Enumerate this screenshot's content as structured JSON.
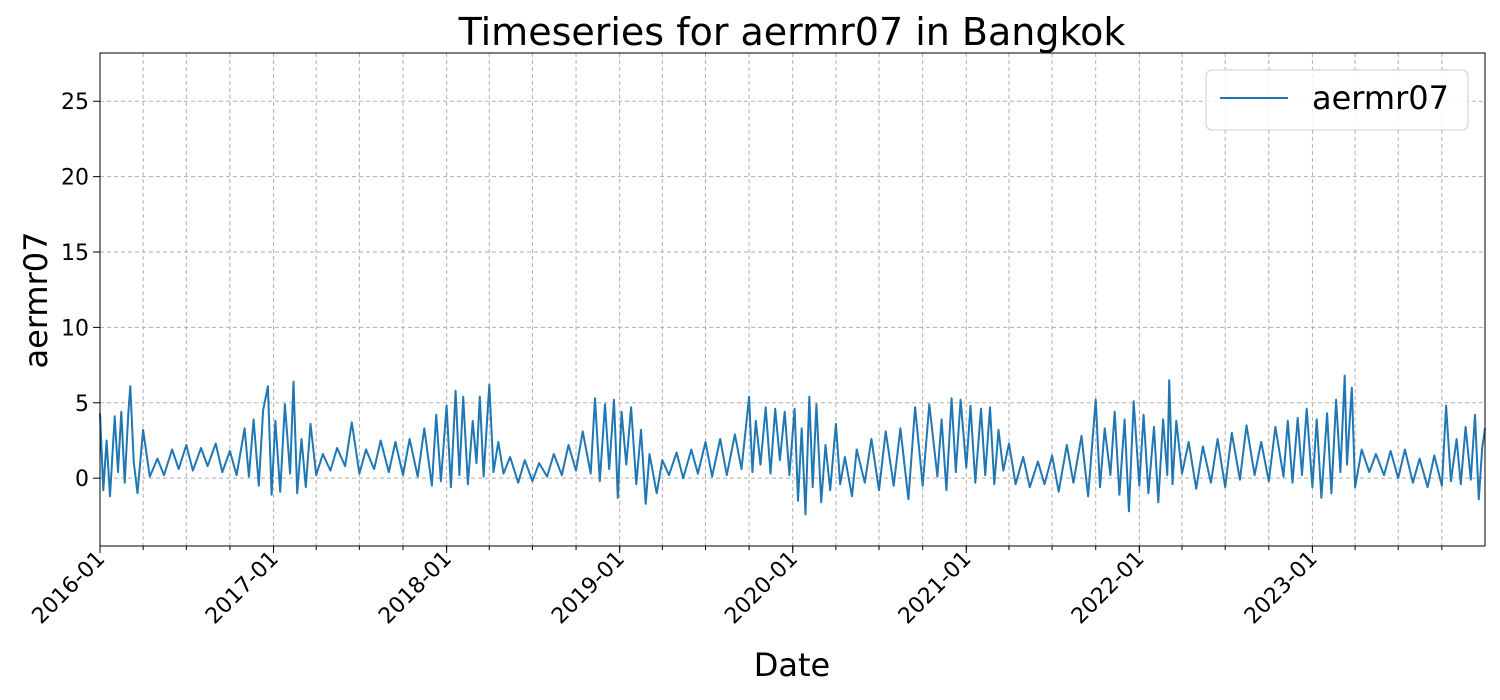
{
  "chart_data": {
    "type": "line",
    "title": "Timeseries for aermr07 in Bangkok",
    "xlabel": "Date",
    "ylabel": "aermr07",
    "x_range": [
      "2016-01-01",
      "2023-12-31"
    ],
    "ylim": [
      -4.5,
      28.2
    ],
    "y_ticks": [
      0,
      5,
      10,
      15,
      20,
      25
    ],
    "x_ticks": [
      "2016-01",
      "2017-01",
      "2018-01",
      "2019-01",
      "2020-01",
      "2021-01",
      "2022-01",
      "2023-01"
    ],
    "grid": true,
    "legend_position": "top-right",
    "series": [
      {
        "name": "aermr07",
        "color": "#1f77b4",
        "points": [
          [
            "2016-01-01",
            4.3
          ],
          [
            "2016-01-08",
            -0.8
          ],
          [
            "2016-01-15",
            2.5
          ],
          [
            "2016-01-22",
            -1.2
          ],
          [
            "2016-02-01",
            4.1
          ],
          [
            "2016-02-08",
            0.4
          ],
          [
            "2016-02-15",
            4.4
          ],
          [
            "2016-02-22",
            -0.3
          ],
          [
            "2016-03-01",
            4.4
          ],
          [
            "2016-03-05",
            6.1
          ],
          [
            "2016-03-12",
            1.1
          ],
          [
            "2016-03-20",
            -1.0
          ],
          [
            "2016-04-01",
            3.2
          ],
          [
            "2016-04-15",
            0.1
          ],
          [
            "2016-05-01",
            1.3
          ],
          [
            "2016-05-15",
            0.2
          ],
          [
            "2016-06-01",
            1.9
          ],
          [
            "2016-06-15",
            0.6
          ],
          [
            "2016-07-01",
            2.2
          ],
          [
            "2016-07-15",
            0.5
          ],
          [
            "2016-08-01",
            2.0
          ],
          [
            "2016-08-15",
            0.8
          ],
          [
            "2016-09-01",
            2.3
          ],
          [
            "2016-09-15",
            0.4
          ],
          [
            "2016-10-01",
            1.8
          ],
          [
            "2016-10-15",
            0.2
          ],
          [
            "2016-11-01",
            3.3
          ],
          [
            "2016-11-10",
            0.1
          ],
          [
            "2016-11-20",
            3.9
          ],
          [
            "2016-12-01",
            -0.5
          ],
          [
            "2016-12-10",
            4.5
          ],
          [
            "2016-12-20",
            6.1
          ],
          [
            "2016-12-28",
            -1.1
          ],
          [
            "2017-01-05",
            3.8
          ],
          [
            "2017-01-15",
            -0.9
          ],
          [
            "2017-01-25",
            4.9
          ],
          [
            "2017-02-05",
            0.3
          ],
          [
            "2017-02-12",
            6.4
          ],
          [
            "2017-02-20",
            -1.0
          ],
          [
            "2017-03-01",
            2.6
          ],
          [
            "2017-03-10",
            -0.6
          ],
          [
            "2017-03-20",
            3.6
          ],
          [
            "2017-04-01",
            0.2
          ],
          [
            "2017-04-15",
            1.6
          ],
          [
            "2017-05-01",
            0.5
          ],
          [
            "2017-05-15",
            2.0
          ],
          [
            "2017-06-01",
            0.8
          ],
          [
            "2017-06-15",
            3.7
          ],
          [
            "2017-07-01",
            0.3
          ],
          [
            "2017-07-15",
            1.9
          ],
          [
            "2017-08-01",
            0.6
          ],
          [
            "2017-08-15",
            2.5
          ],
          [
            "2017-09-01",
            0.4
          ],
          [
            "2017-09-15",
            2.4
          ],
          [
            "2017-10-01",
            0.2
          ],
          [
            "2017-10-15",
            2.6
          ],
          [
            "2017-11-01",
            0.1
          ],
          [
            "2017-11-15",
            3.3
          ],
          [
            "2017-12-01",
            -0.5
          ],
          [
            "2017-12-10",
            4.2
          ],
          [
            "2017-12-20",
            -0.2
          ],
          [
            "2018-01-01",
            4.8
          ],
          [
            "2018-01-10",
            -0.6
          ],
          [
            "2018-01-20",
            5.8
          ],
          [
            "2018-01-28",
            0.2
          ],
          [
            "2018-02-05",
            5.4
          ],
          [
            "2018-02-15",
            -0.4
          ],
          [
            "2018-02-25",
            3.8
          ],
          [
            "2018-03-05",
            1.0
          ],
          [
            "2018-03-12",
            5.4
          ],
          [
            "2018-03-20",
            0.1
          ],
          [
            "2018-04-01",
            6.2
          ],
          [
            "2018-04-10",
            0.4
          ],
          [
            "2018-04-20",
            2.4
          ],
          [
            "2018-05-01",
            0.3
          ],
          [
            "2018-05-15",
            1.4
          ],
          [
            "2018-06-01",
            -0.3
          ],
          [
            "2018-06-15",
            1.2
          ],
          [
            "2018-07-01",
            -0.2
          ],
          [
            "2018-07-15",
            1.0
          ],
          [
            "2018-08-01",
            0.1
          ],
          [
            "2018-08-15",
            1.6
          ],
          [
            "2018-09-01",
            0.2
          ],
          [
            "2018-09-15",
            2.2
          ],
          [
            "2018-10-01",
            0.5
          ],
          [
            "2018-10-15",
            3.1
          ],
          [
            "2018-11-01",
            0.3
          ],
          [
            "2018-11-10",
            5.3
          ],
          [
            "2018-11-20",
            -0.2
          ],
          [
            "2018-12-01",
            4.9
          ],
          [
            "2018-12-10",
            0.6
          ],
          [
            "2018-12-20",
            5.2
          ],
          [
            "2018-12-28",
            -1.3
          ],
          [
            "2019-01-05",
            4.4
          ],
          [
            "2019-01-15",
            0.9
          ],
          [
            "2019-01-25",
            4.7
          ],
          [
            "2019-02-05",
            -0.4
          ],
          [
            "2019-02-15",
            3.2
          ],
          [
            "2019-02-25",
            -1.7
          ],
          [
            "2019-03-05",
            1.6
          ],
          [
            "2019-03-20",
            -1.0
          ],
          [
            "2019-04-01",
            1.2
          ],
          [
            "2019-04-15",
            0.2
          ],
          [
            "2019-05-01",
            1.7
          ],
          [
            "2019-05-15",
            0.0
          ],
          [
            "2019-06-01",
            1.9
          ],
          [
            "2019-06-15",
            0.3
          ],
          [
            "2019-07-01",
            2.4
          ],
          [
            "2019-07-15",
            0.1
          ],
          [
            "2019-08-01",
            2.6
          ],
          [
            "2019-08-15",
            0.2
          ],
          [
            "2019-09-01",
            2.9
          ],
          [
            "2019-09-15",
            0.6
          ],
          [
            "2019-10-01",
            5.4
          ],
          [
            "2019-10-08",
            0.4
          ],
          [
            "2019-10-15",
            3.8
          ],
          [
            "2019-10-25",
            0.9
          ],
          [
            "2019-11-05",
            4.7
          ],
          [
            "2019-11-15",
            0.3
          ],
          [
            "2019-11-25",
            4.6
          ],
          [
            "2019-12-05",
            1.2
          ],
          [
            "2019-12-15",
            4.4
          ],
          [
            "2019-12-25",
            0.2
          ],
          [
            "2020-01-05",
            4.6
          ],
          [
            "2020-01-12",
            -1.5
          ],
          [
            "2020-01-20",
            3.3
          ],
          [
            "2020-01-28",
            -2.4
          ],
          [
            "2020-02-05",
            5.4
          ],
          [
            "2020-02-12",
            -0.6
          ],
          [
            "2020-02-20",
            4.9
          ],
          [
            "2020-03-01",
            -1.6
          ],
          [
            "2020-03-10",
            2.2
          ],
          [
            "2020-03-20",
            -0.8
          ],
          [
            "2020-04-01",
            3.6
          ],
          [
            "2020-04-10",
            -0.4
          ],
          [
            "2020-04-20",
            1.4
          ],
          [
            "2020-05-05",
            -1.2
          ],
          [
            "2020-05-15",
            1.9
          ],
          [
            "2020-06-01",
            -0.3
          ],
          [
            "2020-06-15",
            2.6
          ],
          [
            "2020-07-01",
            -0.8
          ],
          [
            "2020-07-15",
            3.1
          ],
          [
            "2020-08-01",
            -0.5
          ],
          [
            "2020-08-15",
            3.3
          ],
          [
            "2020-09-01",
            -1.4
          ],
          [
            "2020-09-15",
            4.7
          ],
          [
            "2020-10-01",
            -0.5
          ],
          [
            "2020-10-15",
            4.9
          ],
          [
            "2020-11-01",
            0.1
          ],
          [
            "2020-11-10",
            3.9
          ],
          [
            "2020-11-20",
            -0.8
          ],
          [
            "2020-12-01",
            5.3
          ],
          [
            "2020-12-10",
            0.4
          ],
          [
            "2020-12-20",
            5.2
          ],
          [
            "2021-01-01",
            0.7
          ],
          [
            "2021-01-10",
            4.8
          ],
          [
            "2021-01-20",
            -0.3
          ],
          [
            "2021-02-01",
            4.6
          ],
          [
            "2021-02-10",
            0.2
          ],
          [
            "2021-02-20",
            4.7
          ],
          [
            "2021-03-01",
            -0.4
          ],
          [
            "2021-03-10",
            3.2
          ],
          [
            "2021-03-20",
            0.5
          ],
          [
            "2021-04-01",
            2.3
          ],
          [
            "2021-04-15",
            -0.4
          ],
          [
            "2021-05-01",
            1.4
          ],
          [
            "2021-05-15",
            -0.6
          ],
          [
            "2021-06-01",
            1.1
          ],
          [
            "2021-06-15",
            -0.4
          ],
          [
            "2021-07-01",
            1.5
          ],
          [
            "2021-07-15",
            -0.9
          ],
          [
            "2021-08-01",
            2.2
          ],
          [
            "2021-08-15",
            -0.3
          ],
          [
            "2021-09-01",
            2.8
          ],
          [
            "2021-09-15",
            -1.2
          ],
          [
            "2021-10-01",
            5.2
          ],
          [
            "2021-10-10",
            -0.6
          ],
          [
            "2021-10-20",
            3.3
          ],
          [
            "2021-11-01",
            0.2
          ],
          [
            "2021-11-10",
            4.4
          ],
          [
            "2021-11-20",
            -1.1
          ],
          [
            "2021-12-01",
            3.9
          ],
          [
            "2021-12-10",
            -2.2
          ],
          [
            "2021-12-20",
            5.1
          ],
          [
            "2022-01-01",
            -0.5
          ],
          [
            "2022-01-10",
            4.2
          ],
          [
            "2022-01-20",
            -1.0
          ],
          [
            "2022-02-01",
            3.4
          ],
          [
            "2022-02-10",
            -1.6
          ],
          [
            "2022-02-20",
            3.9
          ],
          [
            "2022-03-01",
            0.2
          ],
          [
            "2022-03-05",
            6.5
          ],
          [
            "2022-03-12",
            -0.4
          ],
          [
            "2022-03-20",
            3.8
          ],
          [
            "2022-04-01",
            0.3
          ],
          [
            "2022-04-15",
            2.4
          ],
          [
            "2022-05-01",
            -0.7
          ],
          [
            "2022-05-15",
            2.1
          ],
          [
            "2022-06-01",
            -0.3
          ],
          [
            "2022-06-15",
            2.6
          ],
          [
            "2022-07-01",
            -0.6
          ],
          [
            "2022-07-15",
            3.0
          ],
          [
            "2022-08-01",
            -0.1
          ],
          [
            "2022-08-15",
            3.5
          ],
          [
            "2022-09-01",
            0.2
          ],
          [
            "2022-09-15",
            2.4
          ],
          [
            "2022-10-01",
            -0.2
          ],
          [
            "2022-10-15",
            3.4
          ],
          [
            "2022-11-01",
            0.1
          ],
          [
            "2022-11-10",
            3.8
          ],
          [
            "2022-11-20",
            -0.3
          ],
          [
            "2022-12-01",
            4.0
          ],
          [
            "2022-12-10",
            0.2
          ],
          [
            "2022-12-20",
            4.6
          ],
          [
            "2023-01-01",
            -0.6
          ],
          [
            "2023-01-10",
            3.9
          ],
          [
            "2023-01-20",
            -1.3
          ],
          [
            "2023-02-01",
            4.3
          ],
          [
            "2023-02-10",
            -1.0
          ],
          [
            "2023-02-20",
            5.2
          ],
          [
            "2023-03-01",
            0.4
          ],
          [
            "2023-03-10",
            6.8
          ],
          [
            "2023-03-15",
            0.9
          ],
          [
            "2023-03-25",
            6.0
          ],
          [
            "2023-04-01",
            -0.6
          ],
          [
            "2023-04-15",
            1.9
          ],
          [
            "2023-05-01",
            0.4
          ],
          [
            "2023-05-15",
            1.6
          ],
          [
            "2023-06-01",
            0.2
          ],
          [
            "2023-06-15",
            1.8
          ],
          [
            "2023-07-01",
            0.0
          ],
          [
            "2023-07-15",
            1.9
          ],
          [
            "2023-08-01",
            -0.3
          ],
          [
            "2023-08-15",
            1.3
          ],
          [
            "2023-09-01",
            -0.6
          ],
          [
            "2023-09-15",
            1.5
          ],
          [
            "2023-10-01",
            -0.5
          ],
          [
            "2023-10-10",
            4.8
          ],
          [
            "2023-10-20",
            -0.2
          ],
          [
            "2023-11-01",
            2.6
          ],
          [
            "2023-11-10",
            -0.4
          ],
          [
            "2023-11-20",
            3.4
          ],
          [
            "2023-12-01",
            -0.1
          ],
          [
            "2023-12-10",
            4.2
          ],
          [
            "2023-12-18",
            -1.4
          ],
          [
            "2023-12-25",
            2.0
          ],
          [
            "2023-12-31",
            3.3
          ]
        ]
      }
    ]
  }
}
